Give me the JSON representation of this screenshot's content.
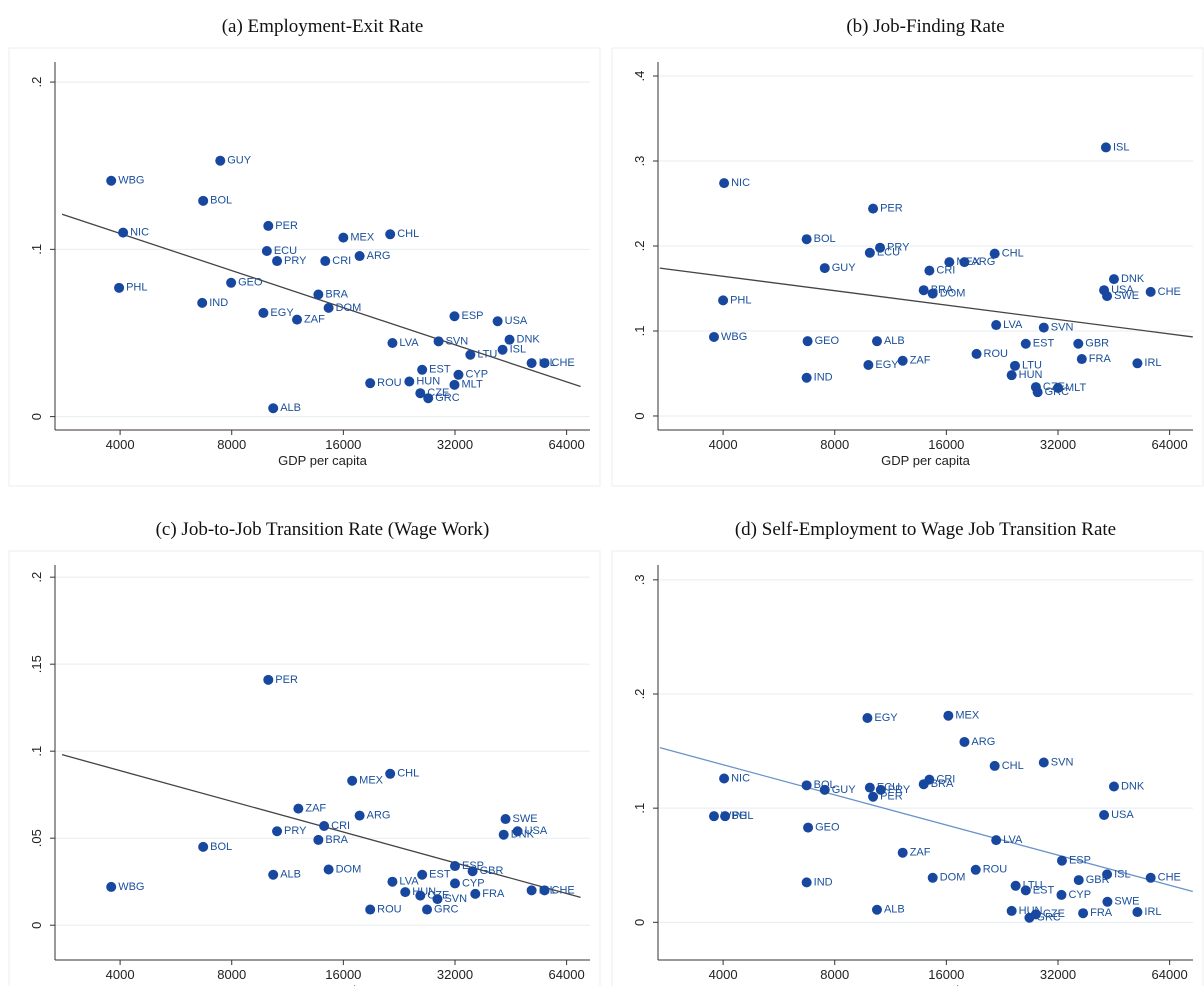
{
  "chart_data": [
    {
      "type": "scatter",
      "title": "(a) Employment-Exit Rate",
      "x_label": "GDP per capita",
      "log_x": true,
      "grid": true,
      "xlim": [
        2670,
        74000
      ],
      "xticks": [
        4000,
        8000,
        16000,
        32000,
        64000
      ],
      "ylim": [
        -0.008,
        0.212
      ],
      "yticks": [
        0,
        {
          "value": 0.1,
          "label": ".1"
        },
        {
          "value": 0.2,
          "label": ".2"
        }
      ],
      "color": "#17479e",
      "point_labels": [
        "WBG",
        "GUY",
        "BOL",
        "NIC",
        "PER",
        "ECU",
        "PRY",
        "CRI",
        "MEX",
        "CHL",
        "ARG",
        "PHL",
        "GEO",
        "IND",
        "BRA",
        "DOM",
        "EGY",
        "ZAF",
        "ESP",
        "USA",
        "DNK",
        "ISL",
        "LVA",
        "SVN",
        "CHE",
        "IRL",
        "LTU",
        "EST",
        "CYP",
        "ROU",
        "HUN",
        "MLT",
        "CZE",
        "GRC",
        "ALB"
      ],
      "x": [
        3785,
        7450,
        6700,
        4075,
        10040,
        9950,
        10600,
        14300,
        16000,
        21400,
        17700,
        3975,
        7970,
        6660,
        13700,
        14600,
        9740,
        12000,
        31900,
        41700,
        44900,
        43000,
        21700,
        28900,
        55800,
        51500,
        35200,
        26100,
        32700,
        18900,
        24100,
        31900,
        25800,
        27100,
        10350
      ],
      "values": [
        0.141,
        0.153,
        0.129,
        0.11,
        0.114,
        0.099,
        0.093,
        0.093,
        0.107,
        0.109,
        0.096,
        0.077,
        0.08,
        0.068,
        0.073,
        0.065,
        0.062,
        0.058,
        0.06,
        0.057,
        0.046,
        0.04,
        0.044,
        0.045,
        0.032,
        0.032,
        0.037,
        0.028,
        0.025,
        0.02,
        0.021,
        0.019,
        0.014,
        0.011,
        0.005
      ],
      "fit_line": {
        "color": "#444444",
        "x": [
          2790,
          69800
        ],
        "values": [
          0.121,
          0.018
        ]
      }
    },
    {
      "type": "scatter",
      "title": "(b) Job-Finding Rate",
      "x_label": "GDP per capita",
      "log_x": true,
      "grid": true,
      "xlim": [
        2670,
        74000
      ],
      "xticks": [
        4000,
        8000,
        16000,
        32000,
        64000
      ],
      "ylim": [
        -0.0165,
        0.4165
      ],
      "yticks": [
        0,
        {
          "value": 0.1,
          "label": ".1"
        },
        {
          "value": 0.2,
          "label": ".2"
        },
        {
          "value": 0.3,
          "label": ".3"
        },
        {
          "value": 0.4,
          "label": ".4"
        }
      ],
      "color": "#17479e",
      "point_labels": [
        "ISL",
        "NIC",
        "PER",
        "BOL",
        "PRY",
        "ECU",
        "CHL",
        "GUY",
        "MEX",
        "ARG",
        "CRI",
        "BRA",
        "DOM",
        "DNK",
        "USA",
        "SWE",
        "CHE",
        "PHL",
        "LVA",
        "SVN",
        "GEO",
        "ALB",
        "WBG",
        "GBR",
        "EST",
        "ZAF",
        "EGY",
        "ROU",
        "FRA",
        "IRL",
        "LTU",
        "HUN",
        "IND",
        "MLT",
        "CZE",
        "GRC"
      ],
      "x": [
        43100,
        4025,
        10150,
        6720,
        10600,
        9950,
        21600,
        7520,
        16300,
        17900,
        14400,
        13900,
        14700,
        45300,
        42600,
        43400,
        56900,
        4000,
        21800,
        29300,
        6760,
        10400,
        3780,
        36300,
        26200,
        12200,
        9860,
        19300,
        37100,
        52400,
        24500,
        24000,
        6720,
        32000,
        27900,
        28200
      ],
      "values": [
        0.316,
        0.274,
        0.244,
        0.208,
        0.198,
        0.192,
        0.191,
        0.174,
        0.181,
        0.181,
        0.171,
        0.148,
        0.144,
        0.161,
        0.148,
        0.141,
        0.146,
        0.136,
        0.107,
        0.104,
        0.088,
        0.088,
        0.093,
        0.085,
        0.085,
        0.065,
        0.06,
        0.073,
        0.067,
        0.062,
        0.059,
        0.048,
        0.045,
        0.033,
        0.034,
        0.028
      ],
      "fit_line": {
        "color": "#444444",
        "x": [
          2700,
          73900
        ],
        "values": [
          0.174,
          0.093
        ]
      }
    },
    {
      "type": "scatter",
      "title": "(c) Job-to-Job Transition Rate (Wage Work)",
      "x_label": "GDP per capita",
      "log_x": true,
      "grid": true,
      "xlim": [
        2670,
        74000
      ],
      "xticks": [
        4000,
        8000,
        16000,
        32000,
        64000
      ],
      "ylim": [
        -0.02,
        0.207
      ],
      "yticks": [
        0,
        {
          "value": 0.05,
          "label": ".05"
        },
        {
          "value": 0.1,
          "label": ".1"
        },
        {
          "value": 0.15,
          "label": ".15"
        },
        {
          "value": 0.2,
          "label": ".2"
        }
      ],
      "color": "#17479e",
      "point_labels": [
        "PER",
        "CHL",
        "MEX",
        "ZAF",
        "ARG",
        "CRI",
        "PRY",
        "BRA",
        "BOL",
        "DOM",
        "ALB",
        "WBG",
        "SWE",
        "USA",
        "DNK",
        "ESP",
        "GBR",
        "EST",
        "CYP",
        "LVA",
        "FRA",
        "HUN",
        "CZE",
        "SVN",
        "CHE",
        "IRL",
        "ROU",
        "GRC"
      ],
      "x": [
        10040,
        21400,
        16900,
        12100,
        17700,
        14200,
        10600,
        13700,
        6700,
        14600,
        10350,
        3785,
        43800,
        47200,
        43300,
        32000,
        35700,
        26100,
        32000,
        21700,
        36300,
        23500,
        25800,
        28700,
        55800,
        51500,
        18900,
        26900
      ],
      "values": [
        0.141,
        0.087,
        0.083,
        0.067,
        0.063,
        0.057,
        0.054,
        0.049,
        0.045,
        0.032,
        0.029,
        0.022,
        0.061,
        0.054,
        0.052,
        0.034,
        0.031,
        0.029,
        0.024,
        0.025,
        0.018,
        0.019,
        0.017,
        0.015,
        0.02,
        0.02,
        0.009,
        0.009
      ],
      "fit_line": {
        "color": "#444444",
        "x": [
          2790,
          69800
        ],
        "values": [
          0.098,
          0.016
        ]
      }
    },
    {
      "type": "scatter",
      "title": "(d) Self-Employment to Wage Job Transition Rate",
      "x_label": "GDP per capita",
      "log_x": true,
      "grid": true,
      "xlim": [
        2670,
        74000
      ],
      "xticks": [
        4000,
        8000,
        16000,
        32000,
        64000
      ],
      "ylim": [
        -0.033,
        0.313
      ],
      "yticks": [
        0,
        {
          "value": 0.1,
          "label": ".1"
        },
        {
          "value": 0.2,
          "label": ".2"
        },
        {
          "value": 0.3,
          "label": ".3"
        }
      ],
      "color": "#17479e",
      "point_labels": [
        "EGY",
        "MEX",
        "ARG",
        "SVN",
        "CHL",
        "NIC",
        "CRI",
        "BRA",
        "DNK",
        "BOL",
        "ECU",
        "GUY",
        "PRY",
        "PER",
        "WBG",
        "PHL",
        "USA",
        "GEO",
        "LVA",
        "ZAF",
        "ESP",
        "ROU",
        "DOM",
        "ISL",
        "CHE",
        "GBR",
        "IND",
        "LTU",
        "EST",
        "CYP",
        "SWE",
        "ALB",
        "HUN",
        "FRA",
        "IRL",
        "CZE",
        "GRC"
      ],
      "x": [
        9800,
        16200,
        17900,
        29300,
        21600,
        4025,
        14400,
        13900,
        45300,
        6720,
        9950,
        7520,
        10650,
        10150,
        3780,
        4050,
        42600,
        6780,
        21800,
        12200,
        32800,
        19200,
        14700,
        43400,
        56900,
        36400,
        6720,
        24600,
        26200,
        32700,
        43500,
        10400,
        24000,
        37400,
        52400,
        27900,
        26800
      ],
      "values": [
        0.179,
        0.181,
        0.158,
        0.14,
        0.137,
        0.126,
        0.125,
        0.121,
        0.119,
        0.12,
        0.118,
        0.116,
        0.116,
        0.11,
        0.093,
        0.093,
        0.094,
        0.083,
        0.072,
        0.061,
        0.054,
        0.046,
        0.039,
        0.042,
        0.039,
        0.037,
        0.035,
        0.032,
        0.028,
        0.024,
        0.018,
        0.011,
        0.01,
        0.008,
        0.009,
        0.007,
        0.004
      ],
      "fit_line": {
        "color": "#6a93c9",
        "x": [
          2700,
          73900
        ],
        "values": [
          0.153,
          0.027
        ]
      }
    }
  ]
}
